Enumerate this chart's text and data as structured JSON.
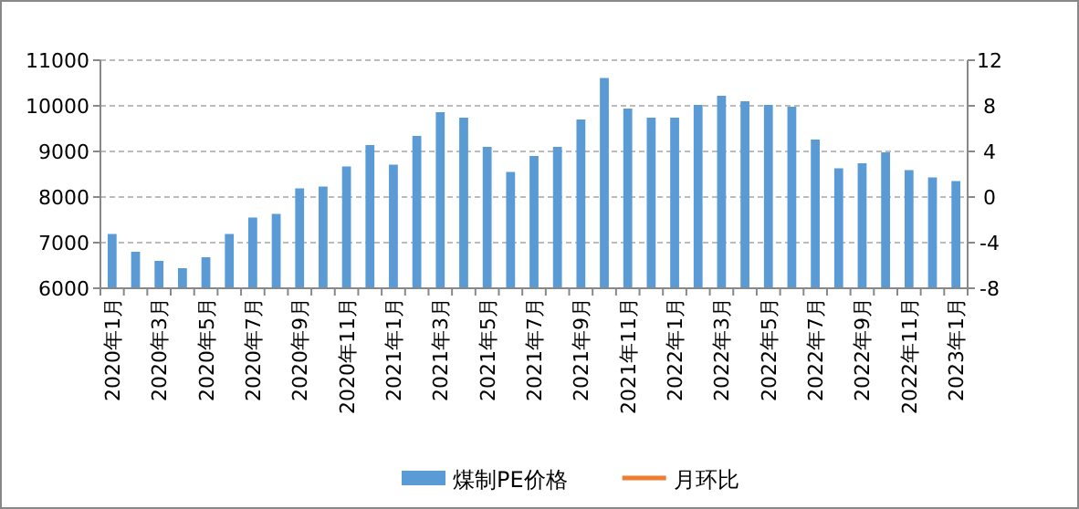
{
  "chart_data": {
    "type": "bar",
    "categories": [
      "2020年1月",
      null,
      "2020年3月",
      null,
      "2020年5月",
      null,
      "2020年7月",
      null,
      "2020年9月",
      null,
      "2020年11月",
      null,
      "2021年1月",
      null,
      "2021年3月",
      null,
      "2021年5月",
      null,
      "2021年7月",
      null,
      "2021年9月",
      null,
      "2021年11月",
      null,
      "2022年1月",
      null,
      "2022年3月",
      null,
      "2022年5月",
      null,
      "2022年7月",
      null,
      "2022年9月",
      null,
      "2022年11月",
      null,
      "2023年1月"
    ],
    "series": [
      {
        "name": "煤制PE价格",
        "color": "#5b9bd5",
        "values": [
          7190,
          6800,
          6600,
          6440,
          6680,
          7190,
          7550,
          7630,
          8190,
          8230,
          8670,
          9140,
          8710,
          9340,
          9860,
          9740,
          9100,
          8550,
          8900,
          9100,
          9700,
          10610,
          9940,
          9740,
          9740,
          10020,
          10220,
          10100,
          10020,
          9980,
          9260,
          8630,
          8740,
          8980,
          8590,
          8430,
          8350
        ]
      },
      {
        "name": "月环比",
        "type": "line",
        "color": "#ed7d31",
        "values": [
          null,
          null,
          null,
          null,
          null,
          null,
          null,
          null,
          null,
          null,
          null,
          null,
          null,
          null,
          null,
          null,
          null,
          null,
          null,
          null,
          null,
          null,
          null,
          null,
          null,
          null,
          null,
          null,
          null,
          null,
          null,
          null,
          null,
          null,
          null,
          null,
          null
        ]
      }
    ],
    "ylim": [
      6000,
      11000
    ],
    "yticks": [
      6000,
      7000,
      8000,
      9000,
      10000,
      11000
    ],
    "y2lim": [
      -8,
      12
    ],
    "y2ticks": [
      -8,
      -4,
      0,
      4,
      8,
      12
    ],
    "grid": "y",
    "legend": "bottom"
  }
}
